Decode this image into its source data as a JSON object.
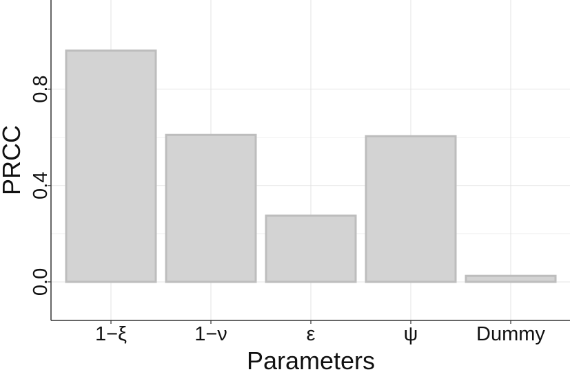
{
  "chart_data": {
    "type": "bar",
    "categories": [
      "1−ξ",
      "1−ν",
      "ε",
      "ψ",
      "Dummy"
    ],
    "values": [
      0.96,
      0.61,
      0.275,
      0.605,
      0.025
    ],
    "xlabel": "Parameters",
    "ylabel": "PRCC",
    "ylim": [
      -0.16,
      1.17
    ],
    "yticks": [
      0.0,
      0.4,
      0.8
    ],
    "ytick_labels": [
      "0.0",
      "0.4",
      "0.8"
    ],
    "grid": true,
    "legend": "none",
    "colors": {
      "bar_fill": "#d3d3d3",
      "bar_stroke": "#bdbdbd",
      "grid": "#e3e3e3",
      "axis": "#333333"
    }
  }
}
